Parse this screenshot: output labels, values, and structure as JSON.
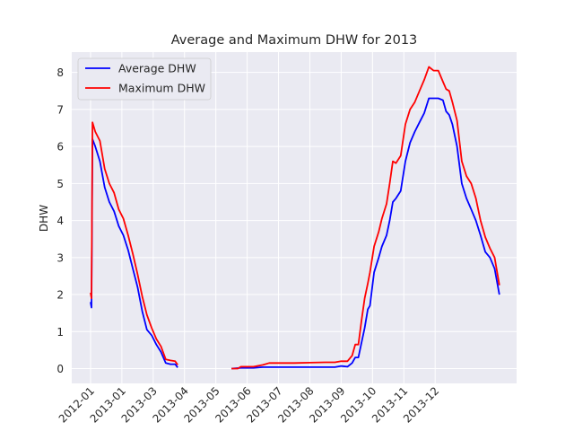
{
  "chart_data": {
    "type": "line",
    "title": "Average and Maximum DHW for 2013",
    "xlabel": "",
    "ylabel": "DHW",
    "ylim": [
      -0.4,
      8.55
    ],
    "yticks": [
      0,
      1,
      2,
      3,
      4,
      5,
      6,
      7,
      8
    ],
    "xlim": [
      -0.6,
      12.45
    ],
    "xtick_labels": [
      "2012-01",
      "2013-01",
      "2013-03",
      "2013-04",
      "2013-05",
      "2013-06",
      "2013-07",
      "2013-08",
      "2013-09",
      "2013-10",
      "2013-11",
      "2013-12"
    ],
    "grid": true,
    "legend_position": "top-left",
    "series": [
      {
        "name": "Average DHW",
        "color": "#0000ff",
        "segments": [
          [
            [
              0,
              1.8
            ],
            [
              0.03,
              1.65
            ],
            [
              0.06,
              6.2
            ],
            [
              0.15,
              6.0
            ],
            [
              0.3,
              5.6
            ],
            [
              0.45,
              4.9
            ],
            [
              0.6,
              4.5
            ],
            [
              0.75,
              4.25
            ],
            [
              0.9,
              3.85
            ],
            [
              1.05,
              3.6
            ],
            [
              1.2,
              3.2
            ],
            [
              1.35,
              2.7
            ],
            [
              1.5,
              2.2
            ],
            [
              1.65,
              1.55
            ],
            [
              1.8,
              1.05
            ],
            [
              1.95,
              0.9
            ],
            [
              2.1,
              0.65
            ],
            [
              2.25,
              0.45
            ],
            [
              2.4,
              0.15
            ],
            [
              2.55,
              0.12
            ],
            [
              2.7,
              0.12
            ],
            [
              2.78,
              0.03
            ]
          ],
          [
            [
              4.5,
              0.0
            ],
            [
              4.8,
              0.02
            ],
            [
              5.2,
              0.02
            ],
            [
              5.5,
              0.04
            ],
            [
              6.0,
              0.04
            ],
            [
              6.5,
              0.04
            ],
            [
              7.0,
              0.04
            ],
            [
              7.5,
              0.04
            ],
            [
              7.8,
              0.04
            ],
            [
              8.0,
              0.07
            ],
            [
              8.2,
              0.05
            ],
            [
              8.35,
              0.15
            ],
            [
              8.45,
              0.3
            ],
            [
              8.55,
              0.3
            ],
            [
              8.65,
              0.7
            ],
            [
              8.75,
              1.1
            ],
            [
              8.85,
              1.6
            ],
            [
              8.92,
              1.7
            ],
            [
              9.05,
              2.6
            ],
            [
              9.2,
              3.0
            ],
            [
              9.3,
              3.3
            ],
            [
              9.45,
              3.6
            ],
            [
              9.55,
              4.0
            ],
            [
              9.65,
              4.5
            ],
            [
              9.75,
              4.6
            ],
            [
              9.9,
              4.8
            ],
            [
              10.05,
              5.6
            ],
            [
              10.2,
              6.1
            ],
            [
              10.35,
              6.4
            ],
            [
              10.5,
              6.65
            ],
            [
              10.65,
              6.9
            ],
            [
              10.8,
              7.3
            ],
            [
              10.95,
              7.3
            ],
            [
              11.1,
              7.3
            ],
            [
              11.25,
              7.25
            ],
            [
              11.35,
              6.95
            ],
            [
              11.45,
              6.85
            ],
            [
              11.55,
              6.6
            ],
            [
              11.7,
              6.0
            ],
            [
              11.85,
              5.0
            ],
            [
              12.0,
              4.6
            ],
            [
              12.15,
              4.3
            ],
            [
              12.3,
              4.0
            ],
            [
              12.45,
              3.6
            ],
            [
              12.6,
              3.15
            ],
            [
              12.75,
              3.0
            ],
            [
              12.9,
              2.7
            ],
            [
              13.05,
              2.0
            ]
          ]
        ]
      },
      {
        "name": "Maximum DHW",
        "color": "#ff0000",
        "segments": [
          [
            [
              0,
              2.05
            ],
            [
              0.03,
              1.9
            ],
            [
              0.06,
              6.65
            ],
            [
              0.15,
              6.4
            ],
            [
              0.3,
              6.15
            ],
            [
              0.45,
              5.4
            ],
            [
              0.6,
              5.0
            ],
            [
              0.75,
              4.75
            ],
            [
              0.9,
              4.3
            ],
            [
              1.05,
              4.05
            ],
            [
              1.2,
              3.6
            ],
            [
              1.35,
              3.1
            ],
            [
              1.5,
              2.55
            ],
            [
              1.65,
              1.95
            ],
            [
              1.8,
              1.45
            ],
            [
              1.95,
              1.1
            ],
            [
              2.1,
              0.8
            ],
            [
              2.25,
              0.6
            ],
            [
              2.4,
              0.25
            ],
            [
              2.55,
              0.22
            ],
            [
              2.7,
              0.2
            ],
            [
              2.78,
              0.1
            ]
          ],
          [
            [
              4.5,
              0.0
            ],
            [
              4.7,
              0.0
            ],
            [
              4.8,
              0.05
            ],
            [
              5.2,
              0.05
            ],
            [
              5.5,
              0.1
            ],
            [
              5.7,
              0.15
            ],
            [
              6.0,
              0.15
            ],
            [
              6.5,
              0.15
            ],
            [
              7.0,
              0.16
            ],
            [
              7.5,
              0.17
            ],
            [
              7.8,
              0.17
            ],
            [
              8.0,
              0.2
            ],
            [
              8.2,
              0.2
            ],
            [
              8.35,
              0.35
            ],
            [
              8.45,
              0.65
            ],
            [
              8.55,
              0.65
            ],
            [
              8.65,
              1.3
            ],
            [
              8.75,
              1.9
            ],
            [
              8.85,
              2.3
            ],
            [
              8.92,
              2.6
            ],
            [
              9.05,
              3.3
            ],
            [
              9.2,
              3.7
            ],
            [
              9.3,
              4.05
            ],
            [
              9.45,
              4.45
            ],
            [
              9.55,
              5.0
            ],
            [
              9.65,
              5.6
            ],
            [
              9.75,
              5.55
            ],
            [
              9.9,
              5.75
            ],
            [
              10.05,
              6.6
            ],
            [
              10.2,
              7.0
            ],
            [
              10.35,
              7.2
            ],
            [
              10.5,
              7.5
            ],
            [
              10.65,
              7.8
            ],
            [
              10.8,
              8.15
            ],
            [
              10.95,
              8.05
            ],
            [
              11.1,
              8.05
            ],
            [
              11.25,
              7.75
            ],
            [
              11.35,
              7.55
            ],
            [
              11.45,
              7.5
            ],
            [
              11.55,
              7.2
            ],
            [
              11.7,
              6.7
            ],
            [
              11.85,
              5.6
            ],
            [
              12.0,
              5.2
            ],
            [
              12.15,
              5.0
            ],
            [
              12.3,
              4.6
            ],
            [
              12.45,
              4.0
            ],
            [
              12.6,
              3.55
            ],
            [
              12.75,
              3.25
            ],
            [
              12.9,
              3.0
            ],
            [
              13.05,
              2.25
            ]
          ]
        ]
      }
    ]
  }
}
